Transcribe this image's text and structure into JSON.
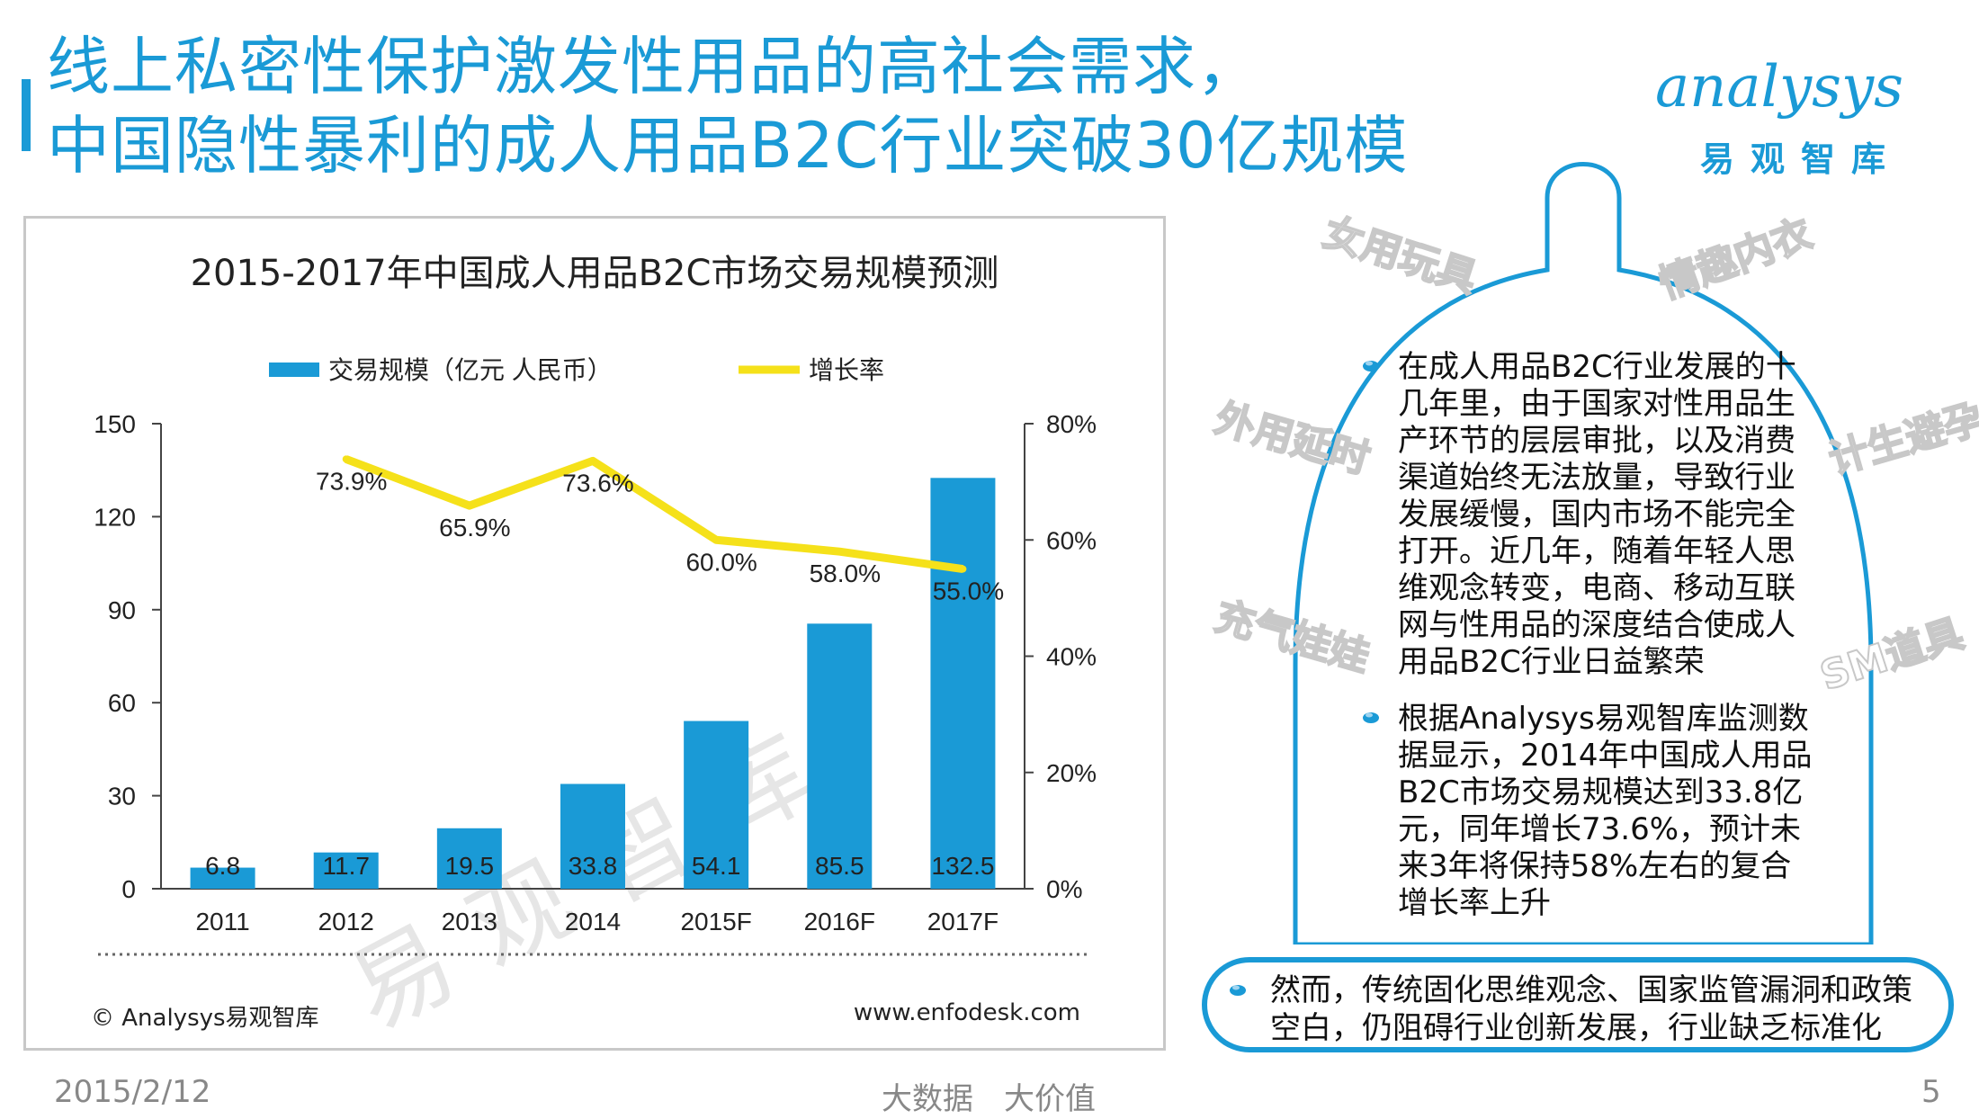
{
  "header": {
    "title_line1": "线上私密性保护激发性用品的高社会需求，",
    "title_line2": "中国隐性暴利的成人用品B2C行业突破30亿规模",
    "logo_text": "analysys",
    "logo_sub": "易观智库"
  },
  "chart_data": {
    "type": "bar+line",
    "title": "2015-2017年中国成人用品B2C市场交易规模预测",
    "categories": [
      "2011",
      "2012",
      "2013",
      "2014",
      "2015F",
      "2016F",
      "2017F"
    ],
    "series": [
      {
        "name": "交易规模（亿元 人民币）",
        "type": "bar",
        "axis": "left",
        "values": [
          6.8,
          11.7,
          19.5,
          33.8,
          54.1,
          85.5,
          132.5
        ],
        "labels": [
          "6.8",
          "11.7",
          "19.5",
          "33.8",
          "54.1",
          "85.5",
          "132.5"
        ]
      },
      {
        "name": "增长率",
        "type": "line",
        "axis": "right",
        "values": [
          null,
          73.9,
          65.9,
          73.6,
          60.0,
          58.0,
          55.0
        ],
        "labels": [
          "",
          "73.9%",
          "65.9%",
          "73.6%",
          "60.0%",
          "58.0%",
          "55.0%"
        ]
      }
    ],
    "y_left": {
      "min": 0,
      "max": 150,
      "ticks": [
        "0",
        "30",
        "60",
        "90",
        "120",
        "150"
      ]
    },
    "y_right": {
      "min": 0,
      "max": 80,
      "ticks": [
        "0%",
        "20%",
        "40%",
        "60%",
        "80%"
      ]
    },
    "colors": {
      "bar": "#1a9ad6",
      "line": "#f5e11a"
    },
    "source": "© Analysys易观智库",
    "url": "www.enfodesk.com",
    "watermark": "易观智库"
  },
  "panel": {
    "tags": [
      "女用玩具",
      "情趣内衣",
      "外用延时",
      "计生避孕",
      "充气娃娃",
      "SM道具"
    ],
    "bullets": [
      "在成人用品B2C行业发展的十几年里，由于国家对性用品生产环节的层层审批，以及消费渠道始终无法放量，导致行业发展缓慢，国内市场不能完全打开。近几年，随着年轻人思维观念转变，电商、移动互联网与性用品的深度结合使成人用品B2C行业日益繁荣",
      "根据Analysys易观智库监测数据显示，2014年中国成人用品B2C市场交易规模达到33.8亿元，同年增长73.6%，预计未来3年将保持58%左右的复合增长率上升"
    ],
    "bottom_text": "然而，传统固化思维观念、国家监管漏洞和政策空白，仍阻碍行业创新发展，行业缺乏标准化"
  },
  "footer": {
    "date": "2015/2/12",
    "slogan": "大数据　大价值",
    "page": "5"
  }
}
